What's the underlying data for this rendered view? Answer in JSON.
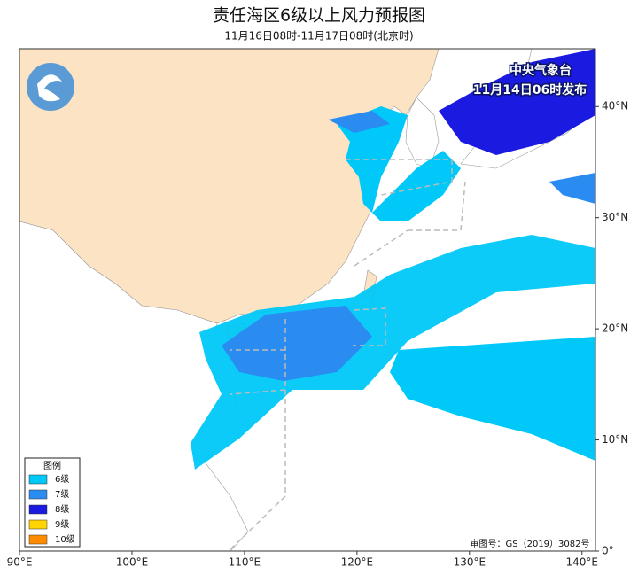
{
  "map": {
    "title": "责任海区6级以上风力预报图",
    "subtitle": "11月16日08时-11月17日08时(北京时)",
    "issuer": "中央气象台",
    "issued": "11月14日06时发布",
    "approval": "审图号：GS（2019）3082号",
    "xlim": [
      90,
      141.2
    ],
    "ylim": [
      0,
      45.2
    ],
    "xticks": [
      {
        "value": 90,
        "label": "90°E"
      },
      {
        "value": 100,
        "label": "100°E"
      },
      {
        "value": 110,
        "label": "110°E"
      },
      {
        "value": 120,
        "label": "120°E"
      },
      {
        "value": 130,
        "label": "130°E"
      },
      {
        "value": 140,
        "label": "140°E"
      }
    ],
    "yticks": [
      {
        "value": 0,
        "label": "0°"
      },
      {
        "value": 10,
        "label": "10°N"
      },
      {
        "value": 20,
        "label": "20°N"
      },
      {
        "value": 30,
        "label": "30°N"
      },
      {
        "value": 40,
        "label": "40°N"
      }
    ],
    "legend": {
      "title": "图例",
      "items": [
        {
          "name": "6级",
          "color": "#00c8f8"
        },
        {
          "name": "7级",
          "color": "#2a8cf0"
        },
        {
          "name": "8级",
          "color": "#1a1ae0"
        },
        {
          "name": "9级",
          "color": "#ffd400"
        },
        {
          "name": "10级",
          "color": "#ff8c00"
        }
      ]
    }
  }
}
